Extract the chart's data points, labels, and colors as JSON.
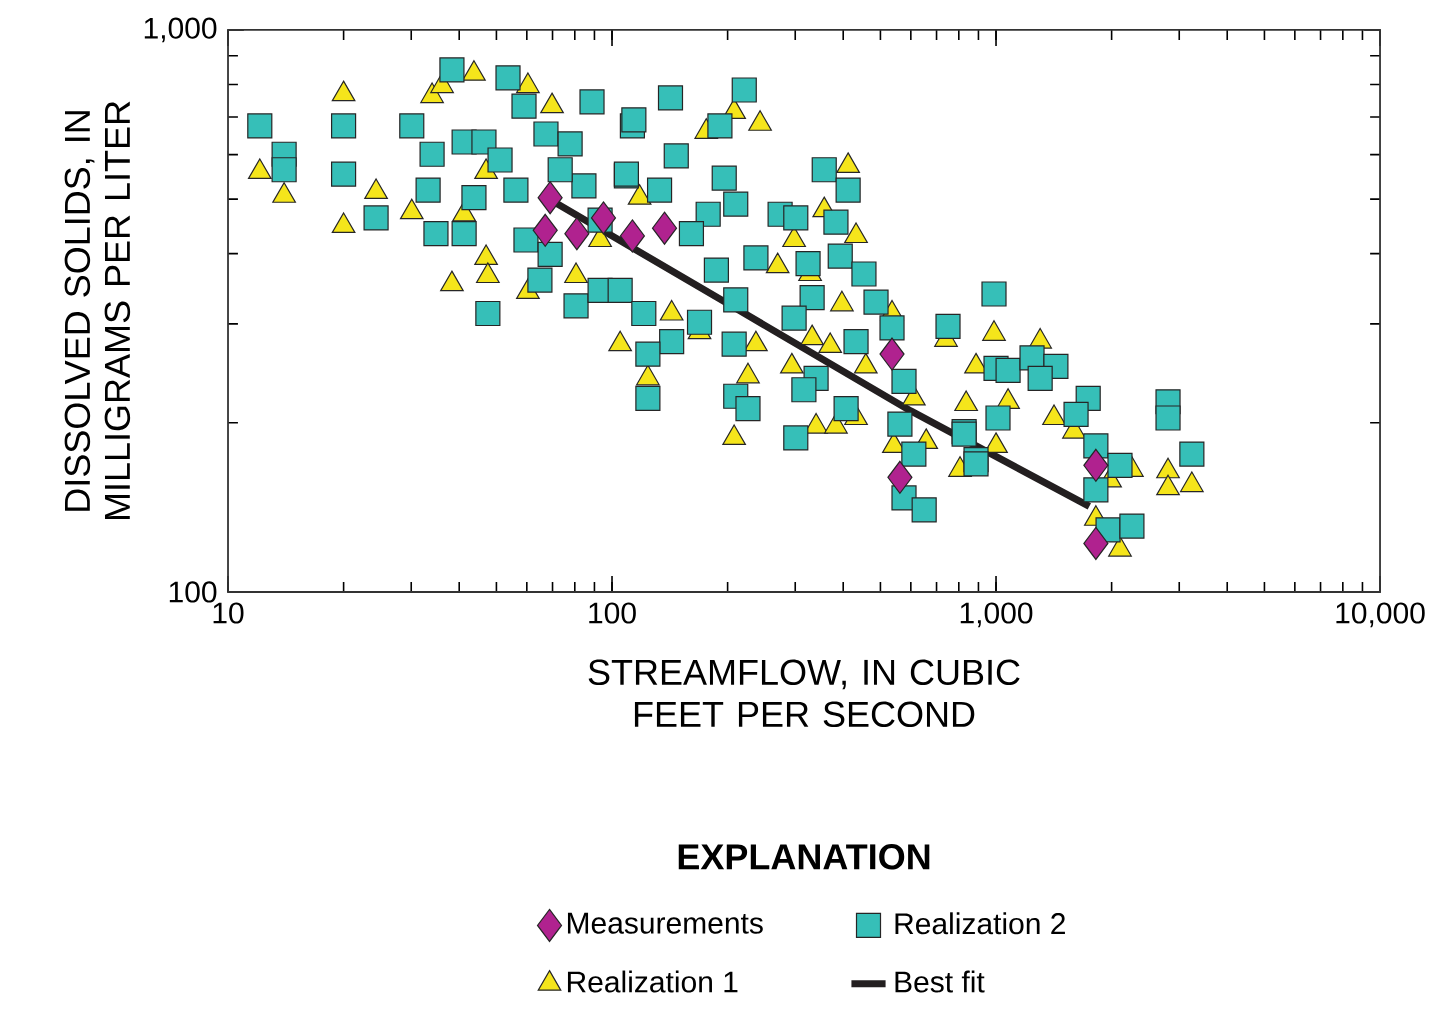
{
  "chart_data": {
    "type": "scatter",
    "xlabel": "STREAMFLOW, IN CUBIC FEET PER SECOND",
    "ylabel": "DISSOLVED SOLIDS, IN MILLIGRAMS PER LITER",
    "legend_title": "EXPLANATION",
    "log": "xy",
    "xlim": [
      10,
      10000
    ],
    "ylim": [
      100,
      1000
    ],
    "xticks": [
      {
        "value": 10,
        "label": "10"
      },
      {
        "value": 100,
        "label": "100"
      },
      {
        "value": 1000,
        "label": "1,000"
      },
      {
        "value": 10000,
        "label": "10,000"
      }
    ],
    "yticks": [
      {
        "value": 100,
        "label": "100"
      },
      {
        "value": 1000,
        "label": "1,000"
      }
    ],
    "legend": "bottom",
    "series": [
      {
        "name": "Measurements",
        "marker": "diamond",
        "color": "#b0228f",
        "x": [
          67,
          69,
          81,
          95,
          113,
          137,
          536,
          562,
          1820,
          1820
        ],
        "values": [
          440,
          503,
          434,
          463,
          430,
          444,
          265,
          160,
          168,
          122
        ]
      },
      {
        "name": "Realization 2",
        "marker": "square",
        "color": "#36bfb8",
        "x": [
          12.1,
          14.0,
          14.0,
          20.0,
          20.0,
          24.3,
          30.1,
          34.0,
          33.2,
          34.8,
          41.2,
          38.3,
          53.6,
          47.5,
          41.2,
          46.4,
          43.7,
          59.0,
          67.3,
          84.5,
          88.7,
          80.6,
          93.1,
          109,
          113,
          56.2,
          59.7,
          69.0,
          142,
          221,
          191,
          114,
          109,
          147,
          196,
          210,
          178,
          161,
          187,
          237,
          210,
          169,
          143,
          124,
          124,
          208,
          210,
          226,
          357,
          412,
          274,
          301,
          383,
          324,
          393,
          453,
          332,
          298,
          487,
          536,
          432,
          340,
          316,
          407,
          301,
          576,
          562,
          611,
          576,
          650,
          750,
          988,
          1000,
          1012,
          826,
          887,
          105,
          121,
          1075,
          1241,
          1432,
          1303,
          1738,
          1616,
          1820,
          2103,
          887,
          1820,
          1958,
          2259,
          2805,
          2805,
          3236,
          826,
          51.1,
          73.3,
          93.1,
          64.9,
          133,
          77.8
        ],
        "values": [
          675,
          601,
          564,
          675,
          554,
          463,
          675,
          601,
          519,
          434,
          434,
          849,
          822,
          313,
          632,
          632,
          503,
          732,
          653,
          528,
          745,
          323,
          344,
          550,
          675,
          519,
          423,
          399,
          757,
          782,
          675,
          692,
          554,
          597,
          545,
          490,
          470,
          434,
          374,
          393,
          331,
          302,
          279,
          265,
          221,
          276,
          223,
          212,
          564,
          519,
          470,
          463,
          455,
          384,
          396,
          368,
          334,
          307,
          328,
          295,
          279,
          240,
          229,
          212,
          188,
          237,
          199,
          176,
          147,
          140,
          297,
          339,
          250,
          204,
          193,
          172,
          344,
          313,
          248,
          261,
          252,
          240,
          221,
          207,
          182,
          168,
          169,
          152,
          129,
          131,
          218,
          204,
          176,
          191,
          587,
          564,
          459,
          359,
          519,
          627
        ]
      },
      {
        "name": "Realization 1",
        "marker": "triangle",
        "color": "#f5e51b",
        "x": [
          12.1,
          14.0,
          20.0,
          20.0,
          24.3,
          30.1,
          34.0,
          36.1,
          43.7,
          41.2,
          47.0,
          47.5,
          38.3,
          60.4,
          60.4,
          69.8,
          47.0,
          80.6,
          105,
          208,
          243,
          176,
          412,
          432,
          357,
          298,
          270,
          328,
          397,
          536,
          332,
          370,
          458,
          294,
          237,
          226,
          143,
          169,
          124,
          208,
          340,
          383,
          432,
          611,
          658,
          542,
          836,
          887,
          988,
          741,
          806,
          1075,
          1303,
          1416,
          1596,
          1000,
          1982,
          2259,
          2805,
          2805,
          3236,
          2103,
          1820,
          93.1,
          118
        ],
        "values": [
          559,
          507,
          769,
          448,
          515,
          474,
          763,
          795,
          836,
          470,
          393,
          365,
          353,
          342,
          795,
          732,
          559,
          365,
          276,
          715,
          681,
          659,
          573,
          430,
          478,
          423,
          380,
          368,
          325,
          313,
          283,
          274,
          252,
          252,
          276,
          242,
          313,
          290,
          240,
          188,
          197,
          197,
          204,
          221,
          185,
          182,
          216,
          252,
          288,
          281,
          165,
          218,
          279,
          204,
          193,
          182,
          158,
          165,
          164,
          153,
          155,
          119,
          135,
          423,
          503
        ]
      },
      {
        "name": "Best fit",
        "type": "line",
        "marker": "none",
        "line_style": "solid",
        "color": "#231f20",
        "x": [
          67,
          200,
          600,
          1750
        ],
        "values": [
          505,
          326,
          210,
          142
        ]
      }
    ]
  }
}
